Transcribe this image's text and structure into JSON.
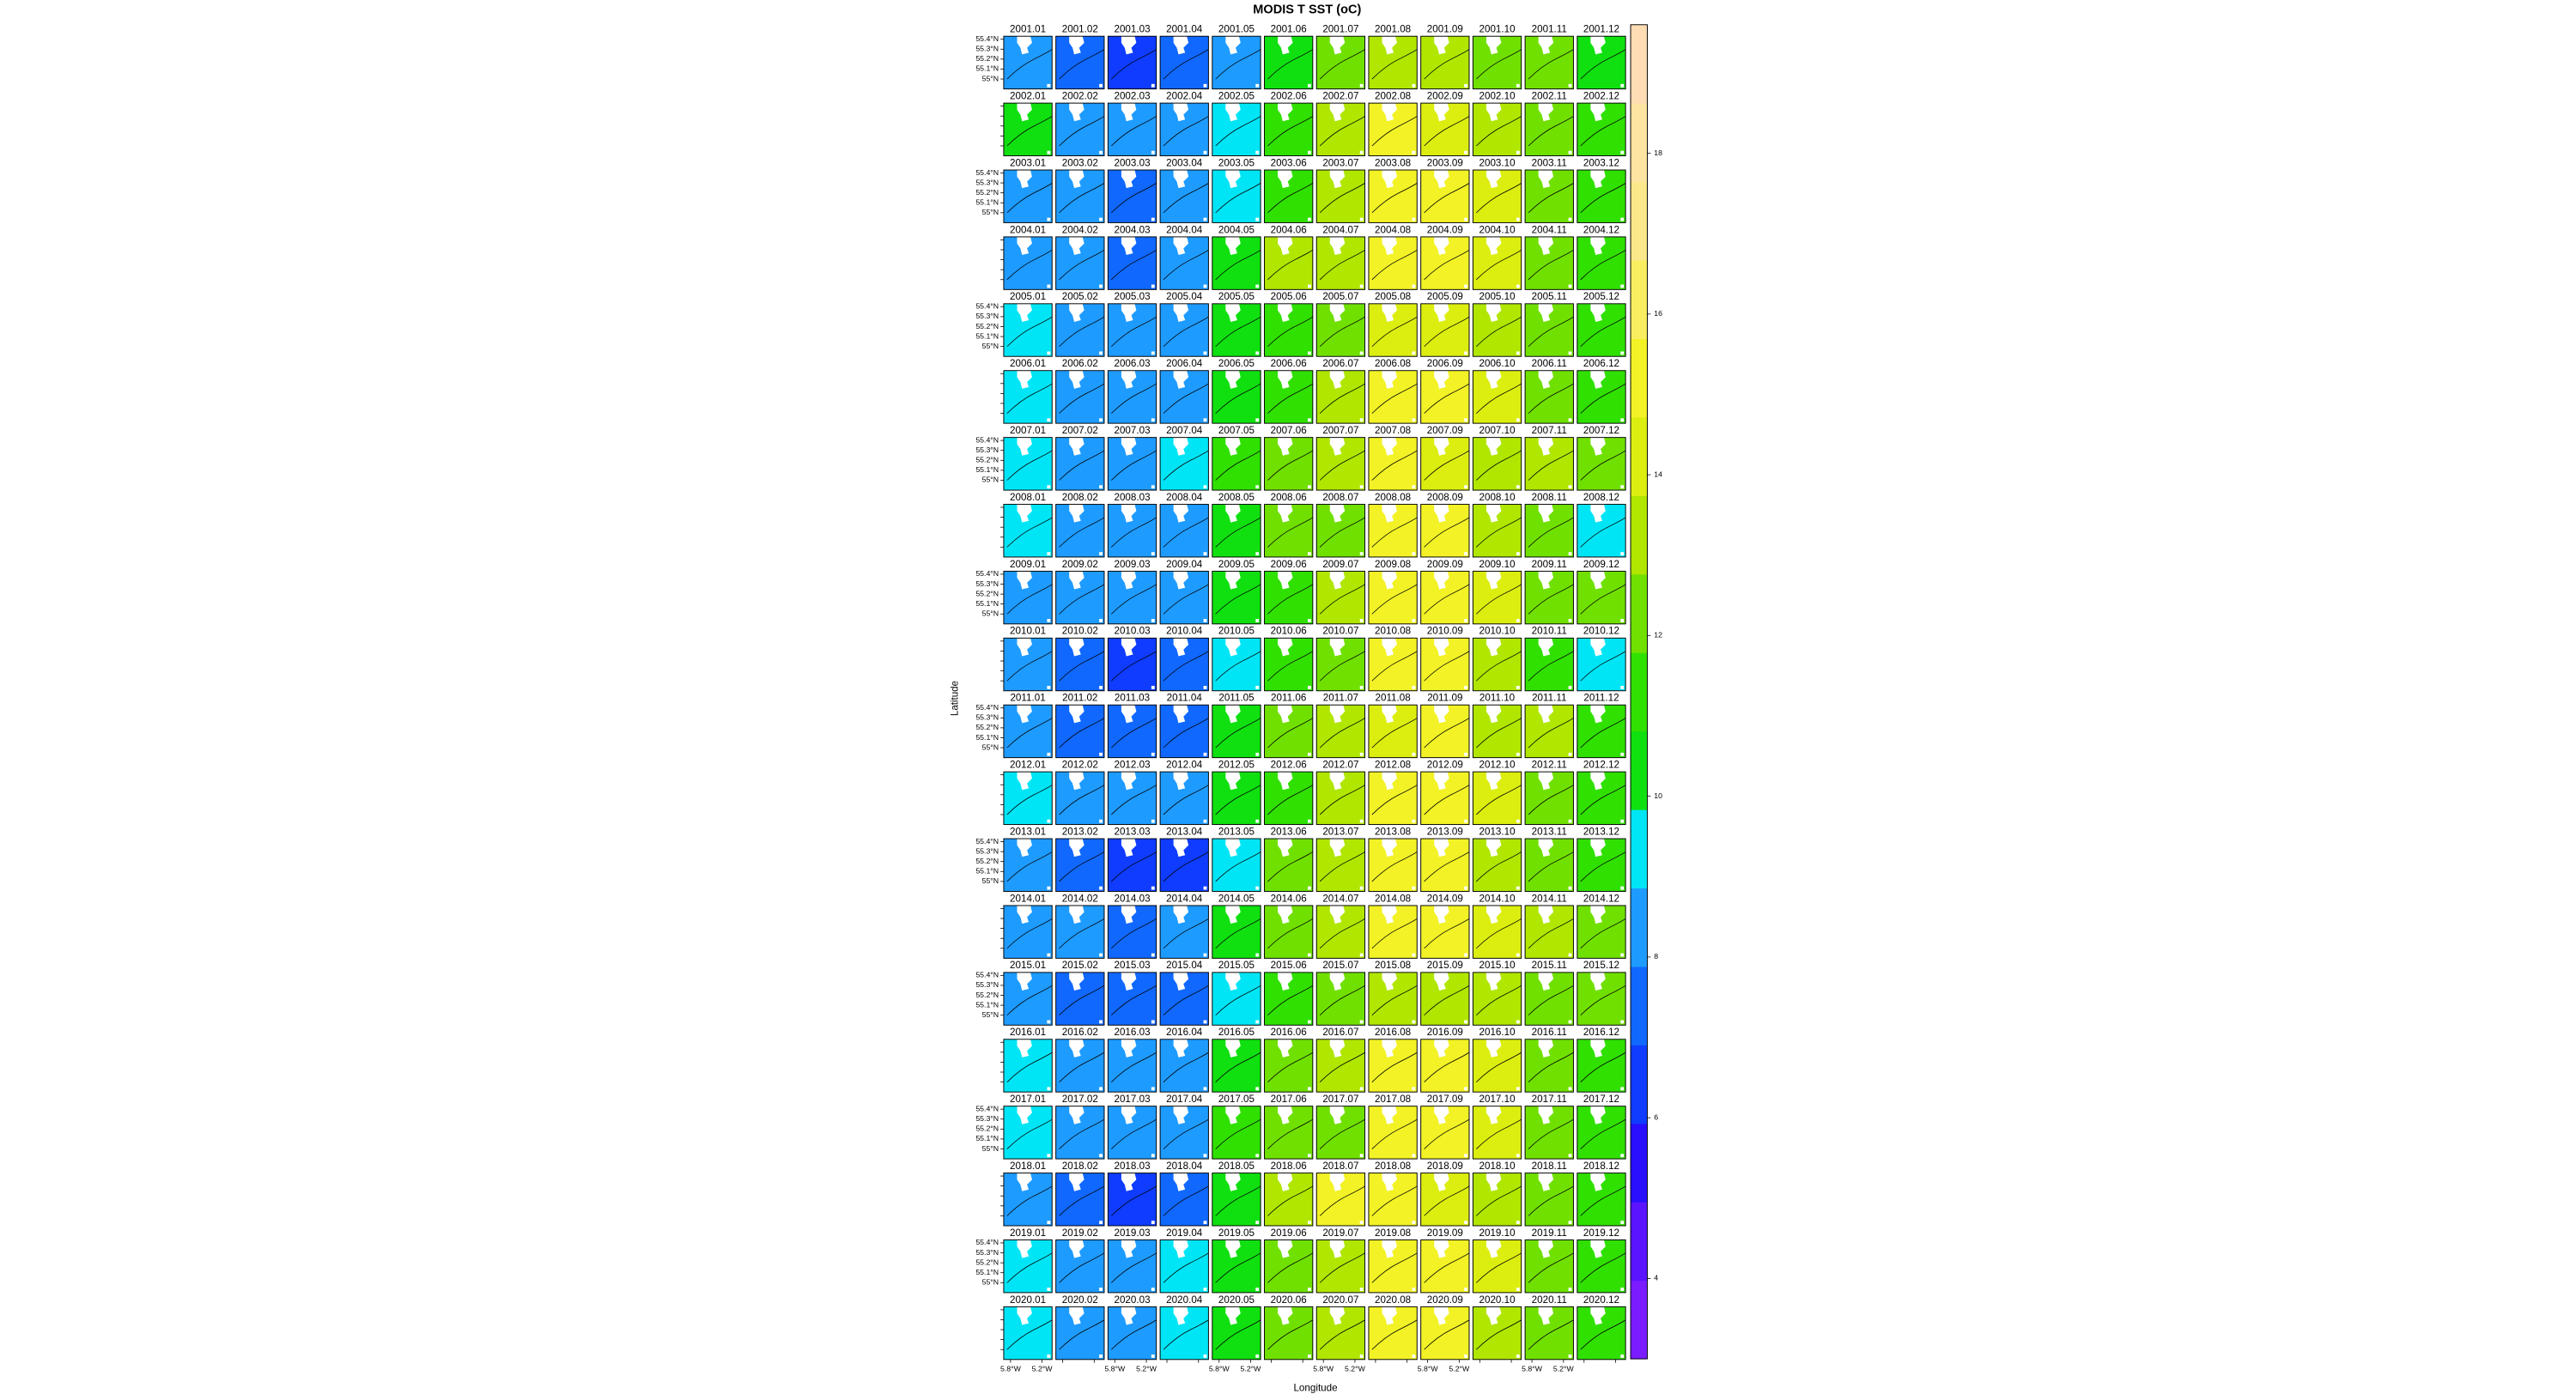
{
  "chart_data": {
    "type": "levelplot",
    "title": "MODIS T SST (oC)",
    "xlabel": "Longitude",
    "ylabel": "Latitude",
    "panel_labels": [
      "2001.01",
      "2001.02",
      "2001.03",
      "2001.04",
      "2001.05",
      "2001.06",
      "2001.07",
      "2001.08",
      "2001.09",
      "2001.10",
      "2001.11",
      "2001.12",
      "2002.01",
      "2002.02",
      "2002.03",
      "2002.04",
      "2002.05",
      "2002.06",
      "2002.07",
      "2002.08",
      "2002.09",
      "2002.10",
      "2002.11",
      "2002.12",
      "2003.01",
      "2003.02",
      "2003.03",
      "2003.04",
      "2003.05",
      "2003.06",
      "2003.07",
      "2003.08",
      "2003.09",
      "2003.10",
      "2003.11",
      "2003.12",
      "2004.01",
      "2004.02",
      "2004.03",
      "2004.04",
      "2004.05",
      "2004.06",
      "2004.07",
      "2004.08",
      "2004.09",
      "2004.10",
      "2004.11",
      "2004.12",
      "2005.01",
      "2005.02",
      "2005.03",
      "2005.04",
      "2005.05",
      "2005.06",
      "2005.07",
      "2005.08",
      "2005.09",
      "2005.10",
      "2005.11",
      "2005.12",
      "2006.01",
      "2006.02",
      "2006.03",
      "2006.04",
      "2006.05",
      "2006.06",
      "2006.07",
      "2006.08",
      "2006.09",
      "2006.10",
      "2006.11",
      "2006.12",
      "2007.01",
      "2007.02",
      "2007.03",
      "2007.04",
      "2007.05",
      "2007.06",
      "2007.07",
      "2007.08",
      "2007.09",
      "2007.10",
      "2007.11",
      "2007.12",
      "2008.01",
      "2008.02",
      "2008.03",
      "2008.04",
      "2008.05",
      "2008.06",
      "2008.07",
      "2008.08",
      "2008.09",
      "2008.10",
      "2008.11",
      "2008.12",
      "2009.01",
      "2009.02",
      "2009.03",
      "2009.04",
      "2009.05",
      "2009.06",
      "2009.07",
      "2009.08",
      "2009.09",
      "2009.10",
      "2009.11",
      "2009.12",
      "2010.01",
      "2010.02",
      "2010.03",
      "2010.04",
      "2010.05",
      "2010.06",
      "2010.07",
      "2010.08",
      "2010.09",
      "2010.10",
      "2010.11",
      "2010.12",
      "2011.01",
      "2011.02",
      "2011.03",
      "2011.04",
      "2011.05",
      "2011.06",
      "2011.07",
      "2011.08",
      "2011.09",
      "2011.10",
      "2011.11",
      "2011.12",
      "2012.01",
      "2012.02",
      "2012.03",
      "2012.04",
      "2012.05",
      "2012.06",
      "2012.07",
      "2012.08",
      "2012.09",
      "2012.10",
      "2012.11",
      "2012.12",
      "2013.01",
      "2013.02",
      "2013.03",
      "2013.04",
      "2013.05",
      "2013.06",
      "2013.07",
      "2013.08",
      "2013.09",
      "2013.10",
      "2013.11",
      "2013.12",
      "2014.01",
      "2014.02",
      "2014.03",
      "2014.04",
      "2014.05",
      "2014.06",
      "2014.07",
      "2014.08",
      "2014.09",
      "2014.10",
      "2014.11",
      "2014.12",
      "2015.01",
      "2015.02",
      "2015.03",
      "2015.04",
      "2015.05",
      "2015.06",
      "2015.07",
      "2015.08",
      "2015.09",
      "2015.10",
      "2015.11",
      "2015.12",
      "2016.01",
      "2016.02",
      "2016.03",
      "2016.04",
      "2016.05",
      "2016.06",
      "2016.07",
      "2016.08",
      "2016.09",
      "2016.10",
      "2016.11",
      "2016.12",
      "2017.01",
      "2017.02",
      "2017.03",
      "2017.04",
      "2017.05",
      "2017.06",
      "2017.07",
      "2017.08",
      "2017.09",
      "2017.10",
      "2017.11",
      "2017.12",
      "2018.01",
      "2018.02",
      "2018.03",
      "2018.04",
      "2018.05",
      "2018.06",
      "2018.07",
      "2018.08",
      "2018.09",
      "2018.10",
      "2018.11",
      "2018.12",
      "2019.01",
      "2019.02",
      "2019.03",
      "2019.04",
      "2019.05",
      "2019.06",
      "2019.07",
      "2019.08",
      "2019.09",
      "2019.10",
      "2019.11",
      "2019.12",
      "2020.01",
      "2020.02",
      "2020.03",
      "2020.04",
      "2020.05",
      "2020.06",
      "2020.07",
      "2020.08",
      "2020.09",
      "2020.10",
      "2020.11",
      "2020.12"
    ],
    "values": [
      8.2,
      7.0,
      6.8,
      7.2,
      8.8,
      10.5,
      12.3,
      13.2,
      12.8,
      12.5,
      11.8,
      10.6,
      10.2,
      8.4,
      8.0,
      8.2,
      9.5,
      11.5,
      12.8,
      14.8,
      13.8,
      13.6,
      12.2,
      11.0,
      8.5,
      8.2,
      7.8,
      8.0,
      8.9,
      11.2,
      13.5,
      14.9,
      14.9,
      14.6,
      12.6,
      11.5,
      8.4,
      8.0,
      7.7,
      8.0,
      10.4,
      12.8,
      13.6,
      14.8,
      14.9,
      13.8,
      12.4,
      11.2,
      9.2,
      8.3,
      8.0,
      8.3,
      10.2,
      11.4,
      12.6,
      14.5,
      14.7,
      13.4,
      12.0,
      11.0,
      9.2,
      8.1,
      8.0,
      8.4,
      9.9,
      11.5,
      12.9,
      14.9,
      14.8,
      14.7,
      12.3,
      11.2,
      9.0,
      8.3,
      8.4,
      9.0,
      11.2,
      12.0,
      13.1,
      14.9,
      14.6,
      13.6,
      13.0,
      12.0,
      8.9,
      8.3,
      8.0,
      8.6,
      10.6,
      11.8,
      12.6,
      14.9,
      14.8,
      13.4,
      12.4,
      9.6,
      8.8,
      8.1,
      8.0,
      8.4,
      10.1,
      11.6,
      13.5,
      14.9,
      14.8,
      14.2,
      12.6,
      11.8,
      8.2,
      7.2,
      6.9,
      7.3,
      9.2,
      11.3,
      12.5,
      14.9,
      14.9,
      13.6,
      11.6,
      9.4,
      8.3,
      7.5,
      7.5,
      7.8,
      10.5,
      12.0,
      12.8,
      14.7,
      14.8,
      13.4,
      12.8,
      11.5,
      9.0,
      8.2,
      8.2,
      8.8,
      10.8,
      11.3,
      13.4,
      14.8,
      14.8,
      13.8,
      12.4,
      11.6,
      8.3,
      7.6,
      6.5,
      6.4,
      8.9,
      12.0,
      13.6,
      14.9,
      14.9,
      13.6,
      12.4,
      11.0,
      8.6,
      8.0,
      7.8,
      8.3,
      10.5,
      12.2,
      13.5,
      14.9,
      14.9,
      14.7,
      13.0,
      12.2,
      8.3,
      7.3,
      7.2,
      7.5,
      9.2,
      11.0,
      11.8,
      13.6,
      13.7,
      13.6,
      12.6,
      11.8,
      9.0,
      8.2,
      8.0,
      8.2,
      10.5,
      12.4,
      13.4,
      14.8,
      14.9,
      13.8,
      11.9,
      11.6,
      9.1,
      8.4,
      8.2,
      8.4,
      10.9,
      12.2,
      12.6,
      14.8,
      14.9,
      14.6,
      12.6,
      11.4,
      8.6,
      7.6,
      6.8,
      7.3,
      10.6,
      13.0,
      14.9,
      14.9,
      14.7,
      13.6,
      12.5,
      11.4,
      9.0,
      8.8,
      8.6,
      9.2,
      10.6,
      12.2,
      13.4,
      15.2,
      14.9,
      13.9,
      12.4,
      11.4,
      9.0,
      8.8,
      8.2,
      8.9,
      10.4,
      12.5,
      13.5,
      14.9,
      14.8,
      13.6,
      12.6,
      11.6
    ],
    "columns": 12,
    "xlim": [
      -5.93,
      -5.01
    ],
    "xticks": [
      {
        "value": -5.8,
        "label": "5.8°W"
      },
      {
        "value": -5.2,
        "label": "5.2°W"
      }
    ],
    "ylim": [
      54.9,
      55.43
    ],
    "yticks": [
      {
        "value": 55.4,
        "label": "55.4°N"
      },
      {
        "value": 55.3,
        "label": "55.3°N"
      },
      {
        "value": 55.2,
        "label": "55.2°N"
      },
      {
        "value": 55.1,
        "label": "55.1°N"
      },
      {
        "value": 55,
        "label": "55°N"
      }
    ],
    "zlim": [
      3,
      19.6
    ],
    "zticks": [
      4,
      6,
      8,
      10,
      12,
      14,
      16,
      18
    ],
    "palette": [
      "#7a1cff",
      "#5a14ff",
      "#2a0fff",
      "#0f3cff",
      "#1068ff",
      "#1e9bff",
      "#00e5f5",
      "#10e010",
      "#30e000",
      "#70e000",
      "#b0e600",
      "#dcee10",
      "#f2f226",
      "#f8ee60",
      "#fbe88a",
      "#fde4a0",
      "#ffdcb4"
    ]
  }
}
